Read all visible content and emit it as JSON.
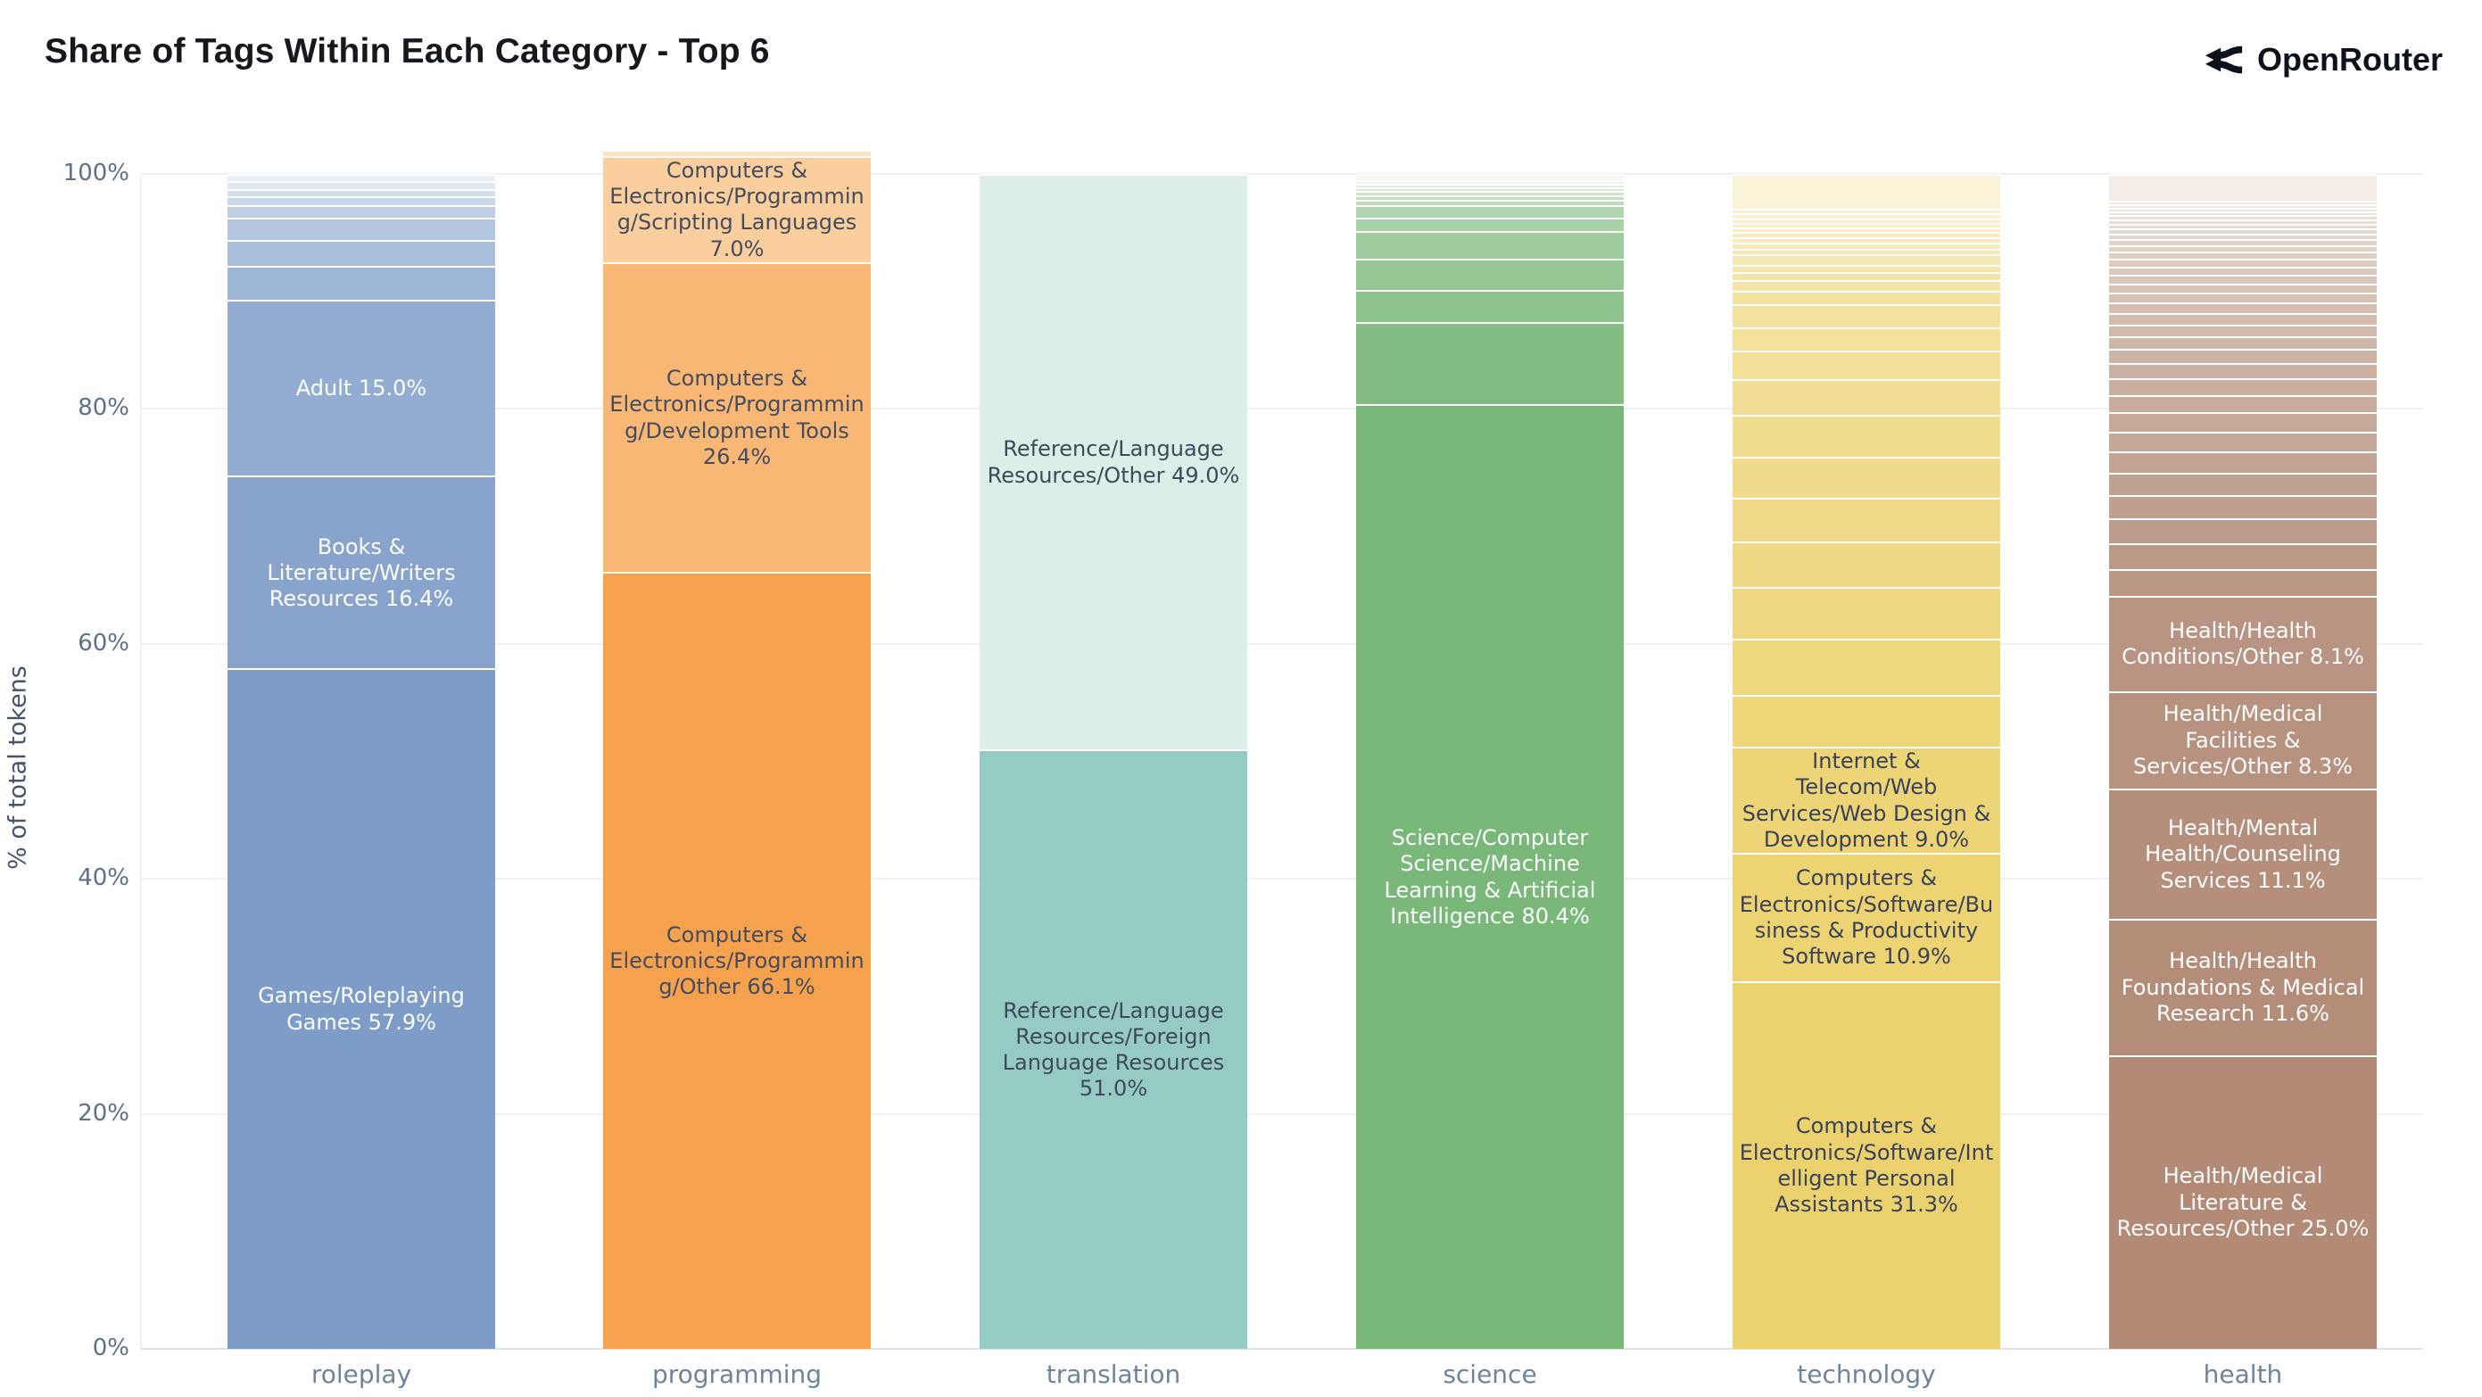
{
  "header": {
    "brand_name": "OpenRouter"
  },
  "colors": {
    "background": "#ffffff",
    "title_text": "#15181c",
    "axis_text": "#5d7189",
    "category_text": "#6d849c",
    "gridline": "#eef1f3",
    "baseline": "#dde3e8",
    "brand_text": "#0c111c",
    "separator": "#ffffff"
  },
  "chart_data": {
    "type": "stacked_bar_100",
    "title": "Share of Tags Within Each Category - Top 6",
    "ylabel": "% of total tokens",
    "xlabel": "",
    "ylim": [
      0,
      100
    ],
    "grid": true,
    "legend": false,
    "y_ticks": [
      {
        "value": 0,
        "label": "0%"
      },
      {
        "value": 20,
        "label": "20%"
      },
      {
        "value": 40,
        "label": "40%"
      },
      {
        "value": 60,
        "label": "60%"
      },
      {
        "value": 80,
        "label": "80%"
      },
      {
        "value": 100,
        "label": "100%"
      }
    ],
    "categories": [
      "roleplay",
      "programming",
      "translation",
      "science",
      "technology",
      "health"
    ],
    "note": "segments listed bottom-to-top; pct of total tokens within category; unlabeled pcts estimated from pixel heights",
    "bars": [
      {
        "category": "roleplay",
        "base_color": "#7d9cc8",
        "light_color": "#e9f0f8",
        "label_text_color": "#fbfdff",
        "segments": [
          {
            "pct": 57.9,
            "label": "Games/Roleplaying Games 57.9%"
          },
          {
            "pct": 16.4,
            "label": "Books & Literature/Writers Resources 16.4%"
          },
          {
            "pct": 15.0,
            "label": "Adult 15.0%"
          },
          {
            "pct": 2.9
          },
          {
            "pct": 2.2
          },
          {
            "pct": 1.9
          },
          {
            "pct": 1.05
          },
          {
            "pct": 0.75
          },
          {
            "pct": 0.65
          },
          {
            "pct": 0.65
          },
          {
            "pct": 0.6
          }
        ]
      },
      {
        "category": "programming",
        "base_color": "#f6a14e",
        "light_color": "#fce4c4",
        "label_text_color": "#454c5e",
        "segments": [
          {
            "pct": 66.1,
            "label": "Computers & Electronics/Programming/Other 66.1%"
          },
          {
            "pct": 26.4,
            "label": "Computers & Electronics/Programming/Development Tools 26.4%"
          },
          {
            "pct": 7.0,
            "label": "Computers & Electronics/Programming/Scripting Languages 7.0%"
          },
          {
            "pct": 0.5
          }
        ]
      },
      {
        "category": "translation",
        "base_color": "#95cbc2",
        "light_color": "#ddeee9",
        "label_text_color": "#3e4a5a",
        "segments": [
          {
            "pct": 51.0,
            "label": "Reference/Language Resources/Foreign Language Resources 51.0%"
          },
          {
            "pct": 49.0,
            "label": "Reference/Language Resources/Other 49.0%"
          }
        ]
      },
      {
        "category": "science",
        "base_color": "#7ab87a",
        "light_color": "#f3f9f1",
        "label_text_color": "#fbfdff",
        "segments": [
          {
            "pct": 80.4,
            "label": "Science/Computer Science/Machine Learning & Artificial Intelligence 80.4%"
          },
          {
            "pct": 6.97
          },
          {
            "pct": 2.77
          },
          {
            "pct": 2.64
          },
          {
            "pct": 2.39
          },
          {
            "pct": 1.13
          },
          {
            "pct": 1.06
          },
          {
            "pct": 0.41
          },
          {
            "pct": 0.38
          },
          {
            "pct": 0.38
          },
          {
            "pct": 0.35
          },
          {
            "pct": 0.32
          },
          {
            "pct": 0.3
          },
          {
            "pct": 0.5
          }
        ]
      },
      {
        "category": "technology",
        "base_color": "#ecd26e",
        "light_color": "#faf3d8",
        "label_text_color": "#3a4258",
        "segments": [
          {
            "pct": 31.3,
            "label": "Computers & Electronics/Software/Intelligent Personal Assistants 31.3%"
          },
          {
            "pct": 10.9,
            "label": "Computers & Electronics/Software/Business & Productivity Software 10.9%"
          },
          {
            "pct": 9.0,
            "label": "Internet & Telecom/Web Services/Web Design & Development 9.0%"
          },
          {
            "pct": 4.4
          },
          {
            "pct": 4.8
          },
          {
            "pct": 4.4
          },
          {
            "pct": 3.9
          },
          {
            "pct": 3.7
          },
          {
            "pct": 3.5
          },
          {
            "pct": 3.6
          },
          {
            "pct": 3.0
          },
          {
            "pct": 2.4
          },
          {
            "pct": 2.0
          },
          {
            "pct": 2.0
          },
          {
            "pct": 1.1
          },
          {
            "pct": 0.9
          },
          {
            "pct": 0.7
          },
          {
            "pct": 0.6
          },
          {
            "pct": 0.9
          },
          {
            "pct": 0.5
          },
          {
            "pct": 0.5
          },
          {
            "pct": 0.45
          },
          {
            "pct": 0.45
          },
          {
            "pct": 0.4
          },
          {
            "pct": 0.4
          },
          {
            "pct": 0.4
          },
          {
            "pct": 0.4
          },
          {
            "pct": 0.4
          },
          {
            "pct": 3.0
          }
        ]
      },
      {
        "category": "health",
        "base_color": "#b28a76",
        "light_color": "#f3ede6",
        "label_text_color": "#fbfdff",
        "segments": [
          {
            "pct": 25.0,
            "label": "Health/Medical Literature & Resources/Other 25.0%"
          },
          {
            "pct": 11.6,
            "label": "Health/Health Foundations & Medical Research 11.6%"
          },
          {
            "pct": 11.1,
            "label": "Health/Mental Health/Counseling Services 11.1%"
          },
          {
            "pct": 8.3,
            "label": "Health/Medical Facilities & Services/Other 8.3%"
          },
          {
            "pct": 8.1,
            "label": "Health/Health Conditions/Other 8.1%"
          },
          {
            "pct": 2.3
          },
          {
            "pct": 2.2
          },
          {
            "pct": 2.1
          },
          {
            "pct": 2.0
          },
          {
            "pct": 1.9
          },
          {
            "pct": 1.8
          },
          {
            "pct": 1.7
          },
          {
            "pct": 1.6
          },
          {
            "pct": 1.5
          },
          {
            "pct": 1.4
          },
          {
            "pct": 1.3
          },
          {
            "pct": 1.2
          },
          {
            "pct": 1.1
          },
          {
            "pct": 1.0
          },
          {
            "pct": 0.95
          },
          {
            "pct": 0.9
          },
          {
            "pct": 0.85
          },
          {
            "pct": 0.8
          },
          {
            "pct": 0.75
          },
          {
            "pct": 0.7
          },
          {
            "pct": 0.65
          },
          {
            "pct": 0.6
          },
          {
            "pct": 0.55
          },
          {
            "pct": 0.5
          },
          {
            "pct": 0.45
          },
          {
            "pct": 0.45
          },
          {
            "pct": 0.4
          },
          {
            "pct": 0.4
          },
          {
            "pct": 0.35
          },
          {
            "pct": 0.35
          },
          {
            "pct": 0.3
          },
          {
            "pct": 0.3
          },
          {
            "pct": 0.3
          },
          {
            "pct": 2.25
          }
        ]
      }
    ]
  }
}
